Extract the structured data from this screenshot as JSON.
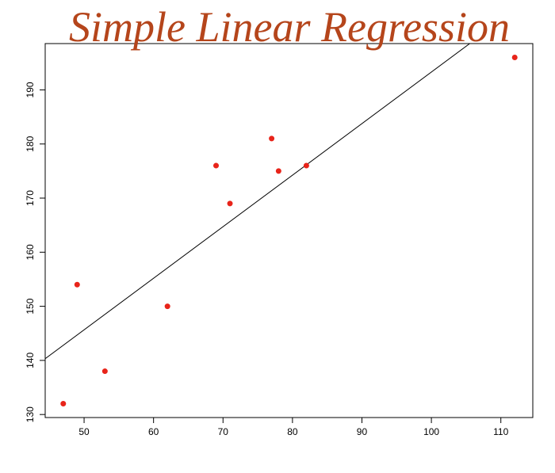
{
  "chart_data": {
    "type": "scatter",
    "title": "Simple Linear Regression",
    "series": [
      {
        "color": "#e8241a",
        "x": [
          47,
          49,
          53,
          62,
          69,
          71,
          77,
          78,
          82,
          112
        ],
        "values": [
          132,
          154,
          138,
          150,
          176,
          169,
          181,
          175,
          176,
          196
        ]
      }
    ],
    "regression": {
      "intercept": 98.0,
      "slope": 0.953,
      "color": "#000000"
    },
    "xlim": [
      44.4,
      114.6
    ],
    "xticks": [
      50,
      60,
      70,
      80,
      90,
      100,
      110
    ],
    "ylim": [
      129.44,
      198.56
    ],
    "yticks": [
      130,
      140,
      150,
      160,
      170,
      180,
      190
    ]
  }
}
